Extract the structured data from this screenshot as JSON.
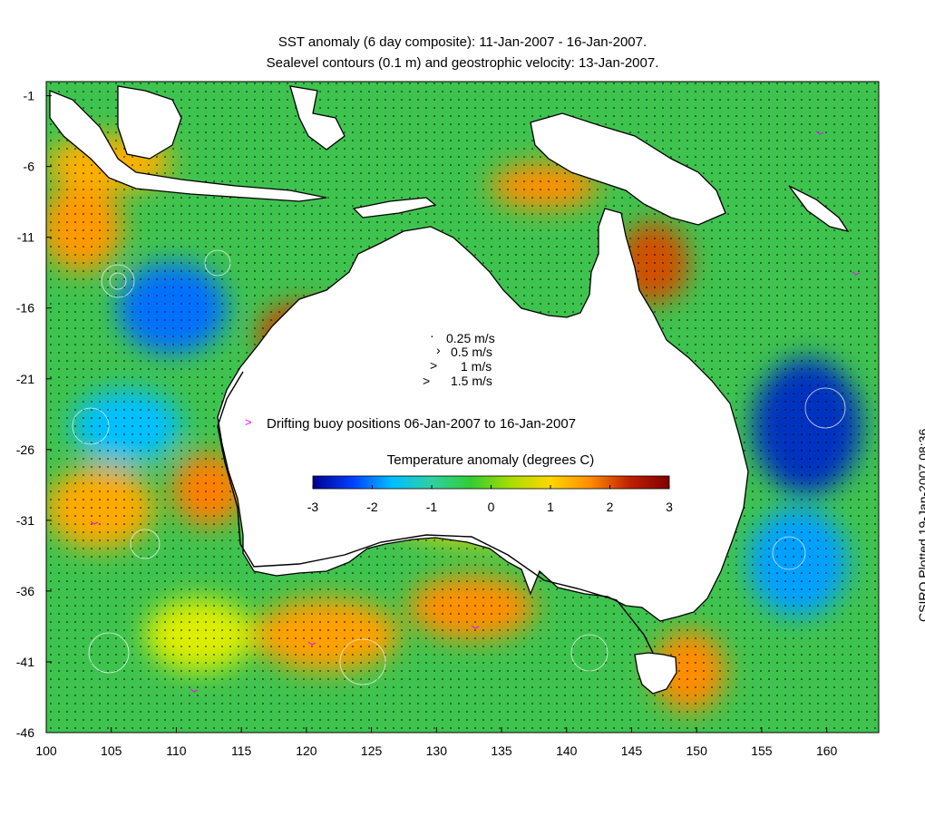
{
  "title_line1": "SST anomaly (6 day composite): 11-Jan-2007 - 16-Jan-2007.",
  "title_line2": "Sealevel contours (0.1 m) and geostrophic velocity: 13-Jan-2007.",
  "side_label": "CSIRO Plotted 19-Jan-2007 08:36",
  "velocity_legend": [
    "0.25 m/s",
    "0.5 m/s",
    "1 m/s",
    "1.5 m/s"
  ],
  "buoy_legend": "Drifting buoy positions 06-Jan-2007 to 16-Jan-2007",
  "colorbar": {
    "title": "Temperature anomaly (degrees C)",
    "min": -3,
    "max": 3,
    "ticks": [
      "-3",
      "-2",
      "-1",
      "0",
      "1",
      "2",
      "3"
    ],
    "colors": [
      "#00008f",
      "#0040ff",
      "#00bfff",
      "#2fd0a0",
      "#33cc33",
      "#aadd00",
      "#ffd700",
      "#ff8c00",
      "#c02000",
      "#800000"
    ]
  },
  "axes": {
    "lon_ticks": [
      "100",
      "105",
      "110",
      "115",
      "120",
      "125",
      "130",
      "135",
      "140",
      "145",
      "150",
      "155",
      "160"
    ],
    "lat_ticks": [
      "-1",
      "-6",
      "-11",
      "-16",
      "-21",
      "-26",
      "-31",
      "-36",
      "-41",
      "-46"
    ],
    "lon_range": [
      100,
      164
    ],
    "lat_range": [
      -46,
      0
    ]
  },
  "colors": {
    "ocean_base": "#3fc34f",
    "land": "#ffffff",
    "coast": "#000000",
    "contours": "#ffffff",
    "buoy": "#ff00ff"
  }
}
